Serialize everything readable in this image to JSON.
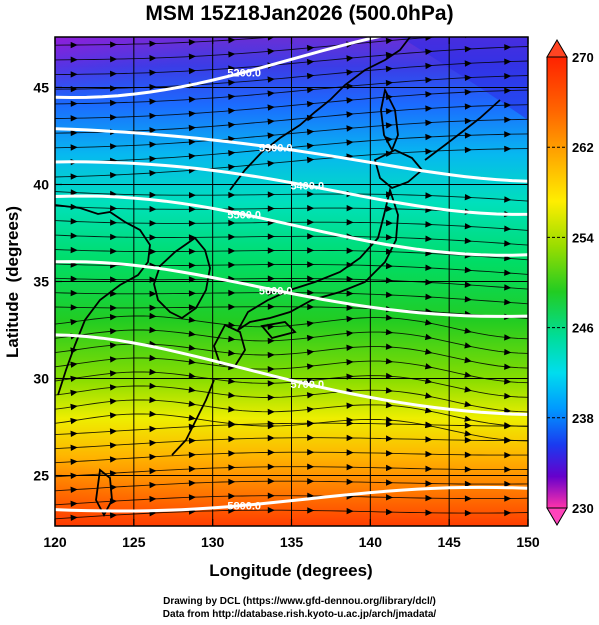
{
  "title": "MSM 15Z18Jan2026 (500.0hPa)",
  "x_axis": {
    "label": "Longitude (degrees)",
    "ticks": [
      120,
      125,
      130,
      135,
      140,
      145,
      150
    ],
    "tick_labels": [
      "120",
      "125",
      "130",
      "135",
      "140",
      "145",
      "150"
    ],
    "range": [
      120,
      150
    ]
  },
  "y_axis": {
    "label": "Latitude  (degrees)",
    "ticks": [
      25,
      30,
      35,
      40,
      45
    ],
    "tick_labels": [
      "25",
      "30",
      "35",
      "40",
      "45"
    ],
    "range": [
      22.4,
      47.6
    ]
  },
  "colorbar": {
    "min": 230,
    "max": 270,
    "tick_labels": [
      "270",
      "262",
      "254",
      "246",
      "238",
      "230"
    ],
    "tick_values": [
      270,
      262,
      254,
      246,
      238,
      230
    ],
    "colors": [
      "#ff3399",
      "#cc00cc",
      "#6600cc",
      "#1a1aee",
      "#1166ff",
      "#00b4ff",
      "#00e6cc",
      "#00dd66",
      "#33cc00",
      "#aadd00",
      "#ffee00",
      "#ffaa00",
      "#ff6600",
      "#ff2200"
    ]
  },
  "contours": [
    {
      "label": "5200.0",
      "lat_start": 44.5,
      "lat_end": 48.4
    },
    {
      "label": "5300.0",
      "lat_start": 43.0,
      "lat_end": 40.3
    },
    {
      "label": "5400.0",
      "lat_start": 41.3,
      "lat_end": 38.6
    },
    {
      "label": "5500.0",
      "lat_start": 39.4,
      "lat_end": 36.4
    },
    {
      "label": "5600.0",
      "lat_start": 35.9,
      "lat_end": 33.1
    },
    {
      "label": "5700.0",
      "lat_start": 32.1,
      "lat_end": 28.0
    },
    {
      "label": "5800.0",
      "lat_start": 23.2,
      "lat_end": 24.3
    }
  ],
  "footer": {
    "line1": "Drawing by DCL (https://www.gfd-dennou.org/library/dcl/)",
    "line2": "Data from http://database.rish.kyoto-u.ac.jp/arch/jmadata/"
  }
}
